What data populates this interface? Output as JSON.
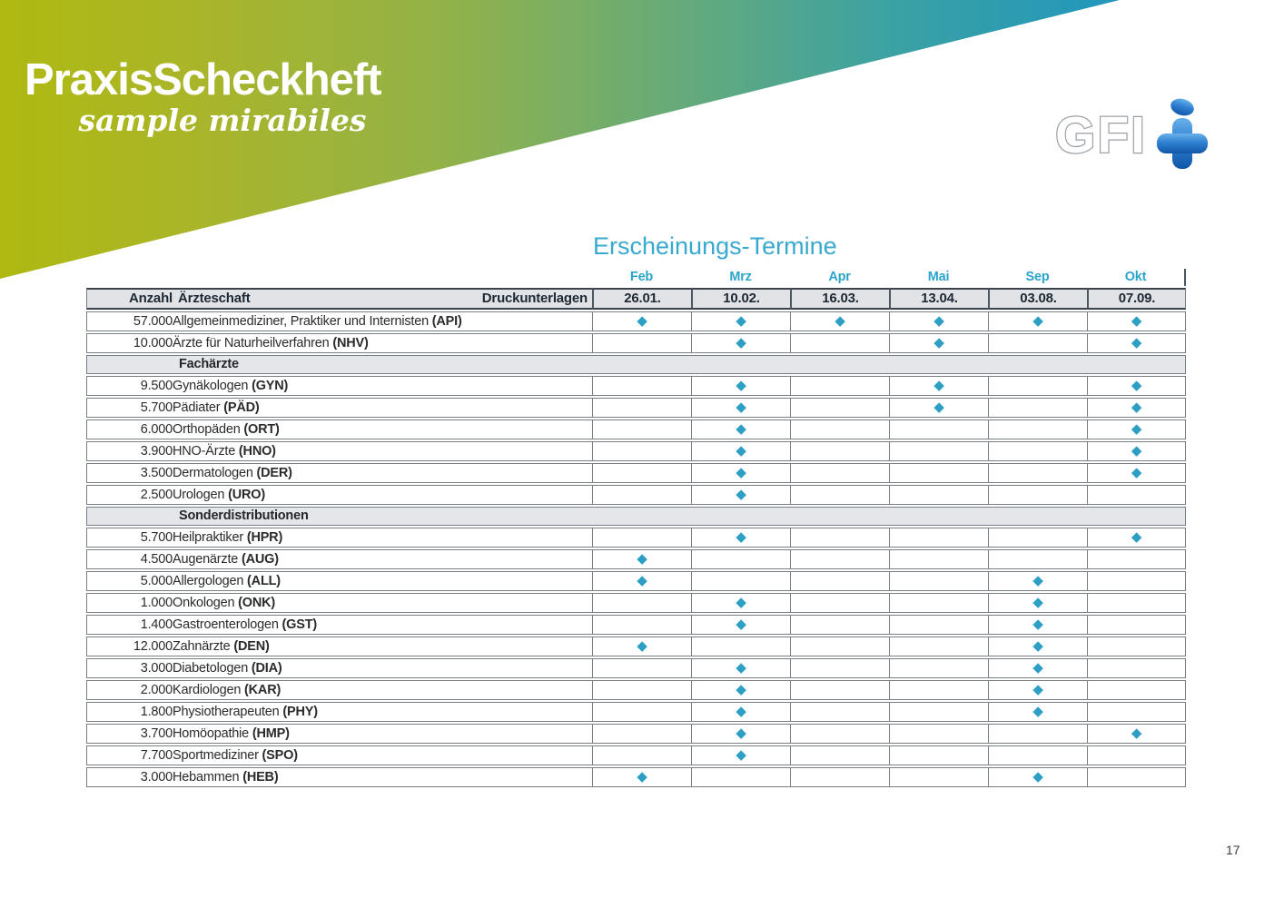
{
  "header": {
    "title": "PraxisScheckheft",
    "subtitle": "sample mirabiles",
    "logo_text": "GFI",
    "gradient_left": "#afb911",
    "gradient_right": "#2196bc"
  },
  "page_number": "17",
  "table": {
    "title": "Erscheinungs-Termine",
    "col_anzahl": "Anzahl",
    "col_aerzteschaft": "Ärzteschaft",
    "col_druckunterlagen": "Druckunterlagen",
    "months": [
      "Feb",
      "Mrz",
      "Apr",
      "Mai",
      "Sep",
      "Okt"
    ],
    "dates": [
      "26.01.",
      "10.02.",
      "16.03.",
      "13.04.",
      "03.08.",
      "07.09."
    ],
    "accent": "#2d9fc4",
    "diamond": "◆",
    "rows": [
      {
        "type": "data",
        "anzahl": "57.000",
        "label": "Allgemeinmediziner, Praktiker und Internisten",
        "abbr": "(API)",
        "marks": [
          1,
          1,
          1,
          1,
          1,
          1
        ]
      },
      {
        "type": "data",
        "anzahl": "10.000",
        "label": "Ärzte für Naturheilverfahren",
        "abbr": "(NHV)",
        "marks": [
          0,
          1,
          0,
          1,
          0,
          1
        ]
      },
      {
        "type": "section",
        "label": "Fachärzte"
      },
      {
        "type": "data",
        "anzahl": "9.500",
        "label": "Gynäkologen",
        "abbr": "(GYN)",
        "marks": [
          0,
          1,
          0,
          1,
          0,
          1
        ]
      },
      {
        "type": "data",
        "anzahl": "5.700",
        "label": "Pädiater",
        "abbr": "(PÄD)",
        "marks": [
          0,
          1,
          0,
          1,
          0,
          1
        ]
      },
      {
        "type": "data",
        "anzahl": "6.000",
        "label": "Orthopäden",
        "abbr": "(ORT)",
        "marks": [
          0,
          1,
          0,
          0,
          0,
          1
        ]
      },
      {
        "type": "data",
        "anzahl": "3.900",
        "label": "HNO-Ärzte",
        "abbr": "(HNO)",
        "marks": [
          0,
          1,
          0,
          0,
          0,
          1
        ]
      },
      {
        "type": "data",
        "anzahl": "3.500",
        "label": "Dermatologen",
        "abbr": "(DER)",
        "marks": [
          0,
          1,
          0,
          0,
          0,
          1
        ]
      },
      {
        "type": "data",
        "anzahl": "2.500",
        "label": "Urologen",
        "abbr": "(URO)",
        "marks": [
          0,
          1,
          0,
          0,
          0,
          0
        ]
      },
      {
        "type": "section",
        "label": "Sonderdistributionen"
      },
      {
        "type": "data",
        "anzahl": "5.700",
        "label": "Heilpraktiker",
        "abbr": "(HPR)",
        "marks": [
          0,
          1,
          0,
          0,
          0,
          1
        ]
      },
      {
        "type": "data",
        "anzahl": "4.500",
        "label": "Augenärzte",
        "abbr": "(AUG)",
        "marks": [
          1,
          0,
          0,
          0,
          0,
          0
        ]
      },
      {
        "type": "data",
        "anzahl": "5.000",
        "label": "Allergologen",
        "abbr": "(ALL)",
        "marks": [
          1,
          0,
          0,
          0,
          1,
          0
        ]
      },
      {
        "type": "data",
        "anzahl": "1.000",
        "label": "Onkologen",
        "abbr": "(ONK)",
        "marks": [
          0,
          1,
          0,
          0,
          1,
          0
        ]
      },
      {
        "type": "data",
        "anzahl": "1.400",
        "label": "Gastroenterologen",
        "abbr": "(GST)",
        "marks": [
          0,
          1,
          0,
          0,
          1,
          0
        ]
      },
      {
        "type": "data",
        "anzahl": "12.000",
        "label": "Zahnärzte",
        "abbr": "(DEN)",
        "marks": [
          1,
          0,
          0,
          0,
          1,
          0
        ]
      },
      {
        "type": "data",
        "anzahl": "3.000",
        "label": "Diabetologen",
        "abbr": "(DIA)",
        "marks": [
          0,
          1,
          0,
          0,
          1,
          0
        ]
      },
      {
        "type": "data",
        "anzahl": "2.000",
        "label": "Kardiologen",
        "abbr": "(KAR)",
        "marks": [
          0,
          1,
          0,
          0,
          1,
          0
        ]
      },
      {
        "type": "data",
        "anzahl": "1.800",
        "label": "Physiotherapeuten",
        "abbr": "(PHY)",
        "marks": [
          0,
          1,
          0,
          0,
          1,
          0
        ]
      },
      {
        "type": "data",
        "anzahl": "3.700",
        "label": "Homöopathie",
        "abbr": "(HMP)",
        "marks": [
          0,
          1,
          0,
          0,
          0,
          1
        ]
      },
      {
        "type": "data",
        "anzahl": "7.700",
        "label": "Sportmediziner",
        "abbr": "(SPO)",
        "marks": [
          0,
          1,
          0,
          0,
          0,
          0
        ]
      },
      {
        "type": "data",
        "anzahl": "3.000",
        "label": "Hebammen",
        "abbr": "(HEB)",
        "marks": [
          1,
          0,
          0,
          0,
          1,
          0
        ]
      }
    ]
  }
}
